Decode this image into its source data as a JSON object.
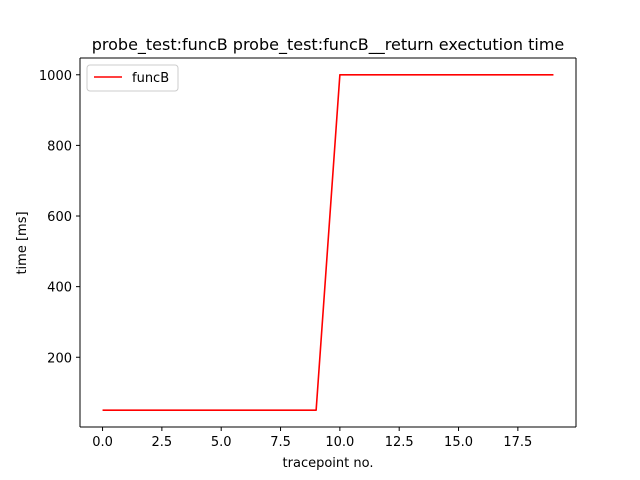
{
  "chart_data": {
    "type": "line",
    "title": "probe_test:funcB probe_test:funcB__return exectution time",
    "xlabel": "tracepoint no.",
    "ylabel": "time [ms]",
    "xlim": [
      -0.95,
      19.95
    ],
    "ylim": [
      2.5,
      1047.5
    ],
    "xticks": [
      0.0,
      2.5,
      5.0,
      7.5,
      10.0,
      12.5,
      15.0,
      17.5
    ],
    "xtick_labels": [
      "0.0",
      "2.5",
      "5.0",
      "7.5",
      "10.0",
      "12.5",
      "15.0",
      "17.5"
    ],
    "yticks": [
      200,
      400,
      600,
      800,
      1000
    ],
    "ytick_labels": [
      "200",
      "400",
      "600",
      "800",
      "1000"
    ],
    "grid": false,
    "legend_position": "upper-left",
    "series": [
      {
        "name": "funcB",
        "color": "#ff0000",
        "x": [
          0,
          1,
          2,
          3,
          4,
          5,
          6,
          7,
          8,
          9,
          10,
          11,
          12,
          13,
          14,
          15,
          16,
          17,
          18,
          19
        ],
        "values": [
          50,
          50,
          50,
          50,
          50,
          50,
          50,
          50,
          50,
          50,
          1000,
          1000,
          1000,
          1000,
          1000,
          1000,
          1000,
          1000,
          1000,
          1000
        ]
      }
    ]
  }
}
